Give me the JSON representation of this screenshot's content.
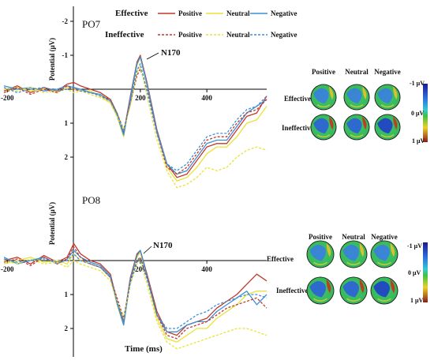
{
  "chart_data": [
    {
      "type": "line",
      "channel": "PO7",
      "ylabel": "Potential (μV)",
      "peak_label": "N170",
      "x_ticks": [
        "-200",
        "200",
        "400"
      ],
      "x_tick_values": [
        -200,
        200,
        400
      ],
      "xlim": [
        -210,
        580
      ],
      "y_ticks": [
        "-2",
        "-1",
        "1",
        "2"
      ],
      "y_tick_values": [
        -2,
        -1,
        1,
        2
      ],
      "ylim": [
        -2.6,
        2.85
      ],
      "y_inverted": true,
      "legend": {
        "effective_label": "Effective",
        "ineffective_label": "Ineffective",
        "positive_label": "Positive",
        "neutral_label": "Neutral",
        "negative_label": "Negative"
      },
      "series": [
        {
          "name": "Effective Positive",
          "condition": "Effective",
          "valence": "Positive",
          "color": "#c0392b",
          "dash": false,
          "x": [
            -210,
            -170,
            -130,
            -90,
            -50,
            -20,
            0,
            20,
            50,
            80,
            110,
            130,
            150,
            170,
            190,
            200,
            220,
            250,
            280,
            310,
            340,
            370,
            400,
            430,
            460,
            490,
            520,
            550,
            580
          ],
          "y": [
            0.05,
            -0.1,
            0.1,
            -0.05,
            0.05,
            -0.15,
            -0.2,
            -0.1,
            0.0,
            0.1,
            0.3,
            0.7,
            1.3,
            0.2,
            -0.8,
            -1.0,
            -0.2,
            1.2,
            2.2,
            2.6,
            2.5,
            2.1,
            1.7,
            1.6,
            1.6,
            1.2,
            0.8,
            0.7,
            0.2
          ]
        },
        {
          "name": "Effective Neutral",
          "condition": "Effective",
          "valence": "Neutral",
          "color": "#e8e23a",
          "dash": false,
          "x": [
            -210,
            -170,
            -130,
            -90,
            -50,
            -20,
            0,
            20,
            50,
            80,
            110,
            130,
            150,
            170,
            190,
            200,
            220,
            250,
            280,
            310,
            340,
            370,
            400,
            430,
            460,
            490,
            520,
            550,
            580
          ],
          "y": [
            0.0,
            -0.05,
            0.05,
            0.0,
            0.1,
            -0.05,
            0.0,
            0.05,
            0.05,
            0.2,
            0.4,
            0.8,
            1.4,
            0.3,
            -0.7,
            -0.95,
            -0.1,
            1.3,
            2.3,
            2.7,
            2.6,
            2.3,
            1.9,
            1.7,
            1.7,
            1.4,
            1.0,
            0.9,
            0.5
          ]
        },
        {
          "name": "Effective Negative",
          "condition": "Effective",
          "valence": "Negative",
          "color": "#3d8fd6",
          "dash": false,
          "x": [
            -210,
            -170,
            -130,
            -90,
            -50,
            -20,
            0,
            20,
            50,
            80,
            110,
            130,
            150,
            170,
            190,
            200,
            220,
            250,
            280,
            310,
            340,
            370,
            400,
            430,
            460,
            490,
            520,
            550,
            580
          ],
          "y": [
            -0.1,
            0.0,
            -0.05,
            0.05,
            0.0,
            -0.1,
            -0.05,
            0.0,
            0.1,
            0.15,
            0.35,
            0.75,
            1.35,
            0.25,
            -0.75,
            -0.95,
            -0.15,
            1.25,
            2.2,
            2.5,
            2.4,
            2.0,
            1.6,
            1.5,
            1.5,
            1.1,
            0.7,
            0.5,
            0.3
          ]
        },
        {
          "name": "Ineffective Positive",
          "condition": "Ineffective",
          "valence": "Positive",
          "color": "#c0392b",
          "dash": true,
          "x": [
            -210,
            -170,
            -130,
            -90,
            -50,
            -20,
            0,
            20,
            50,
            80,
            110,
            130,
            150,
            170,
            190,
            200,
            220,
            250,
            280,
            310,
            340,
            370,
            400,
            430,
            460,
            490,
            520,
            550,
            580
          ],
          "y": [
            0.1,
            -0.05,
            0.15,
            0.0,
            0.1,
            -0.1,
            0.0,
            0.05,
            0.1,
            0.2,
            0.3,
            0.7,
            1.2,
            0.4,
            -0.4,
            -0.6,
            0.0,
            1.3,
            2.3,
            2.5,
            2.3,
            1.9,
            1.5,
            1.4,
            1.4,
            1.0,
            0.7,
            0.6,
            0.3
          ]
        },
        {
          "name": "Ineffective Neutral",
          "condition": "Ineffective",
          "valence": "Neutral",
          "color": "#e8e23a",
          "dash": true,
          "x": [
            -210,
            -170,
            -130,
            -90,
            -50,
            -20,
            0,
            20,
            50,
            80,
            110,
            130,
            150,
            170,
            190,
            200,
            220,
            250,
            280,
            310,
            340,
            370,
            400,
            430,
            460,
            490,
            520,
            550,
            580
          ],
          "y": [
            0.0,
            0.05,
            -0.05,
            0.1,
            0.05,
            0.0,
            0.1,
            0.05,
            0.15,
            0.25,
            0.4,
            0.8,
            1.2,
            0.5,
            -0.5,
            -0.7,
            0.2,
            1.5,
            2.4,
            2.9,
            2.8,
            2.6,
            2.3,
            2.4,
            2.3,
            2.0,
            1.8,
            1.7,
            1.8
          ]
        },
        {
          "name": "Ineffective Negative",
          "condition": "Ineffective",
          "valence": "Negative",
          "color": "#3d8fd6",
          "dash": true,
          "x": [
            -210,
            -170,
            -130,
            -90,
            -50,
            -20,
            0,
            20,
            50,
            80,
            110,
            130,
            150,
            170,
            190,
            200,
            220,
            250,
            280,
            310,
            340,
            370,
            400,
            430,
            460,
            490,
            520,
            550,
            580
          ],
          "y": [
            -0.05,
            0.1,
            0.0,
            -0.05,
            0.05,
            0.0,
            -0.05,
            0.05,
            0.1,
            0.2,
            0.35,
            0.7,
            1.25,
            0.35,
            -0.55,
            -0.75,
            0.05,
            1.3,
            2.2,
            2.4,
            2.2,
            1.8,
            1.4,
            1.3,
            1.3,
            0.9,
            0.6,
            0.5,
            0.2
          ]
        }
      ],
      "topomap": {
        "column_labels": [
          "Positive",
          "Neutral",
          "Negative"
        ],
        "row_labels": [
          "Effective",
          "Ineffective"
        ],
        "scale_labels": [
          "-1 μV",
          "0 μV",
          "1 μV"
        ]
      }
    },
    {
      "type": "line",
      "channel": "PO8",
      "ylabel": "Potential (μV)",
      "peak_label": "N170",
      "xlabel": "Time (ms)",
      "x_ticks": [
        "-200",
        "200",
        "400"
      ],
      "x_tick_values": [
        -200,
        200,
        400
      ],
      "xlim": [
        -210,
        580
      ],
      "y_ticks": [
        "1",
        "2"
      ],
      "y_tick_values": [
        1,
        2
      ],
      "ylim": [
        -1.3,
        2.85
      ],
      "y_inverted": true,
      "series": [
        {
          "name": "Effective Positive",
          "condition": "Effective",
          "valence": "Positive",
          "color": "#c0392b",
          "dash": false,
          "x": [
            -210,
            -170,
            -130,
            -90,
            -50,
            -20,
            0,
            20,
            50,
            80,
            110,
            130,
            150,
            170,
            190,
            200,
            220,
            250,
            280,
            310,
            340,
            370,
            400,
            430,
            460,
            490,
            520,
            550,
            580
          ],
          "y": [
            0.0,
            -0.1,
            0.1,
            -0.15,
            0.05,
            -0.1,
            -0.5,
            -0.2,
            0.0,
            0.1,
            0.4,
            1.2,
            1.8,
            0.5,
            -0.2,
            -0.3,
            0.4,
            1.5,
            2.1,
            2.2,
            1.9,
            1.8,
            1.7,
            1.4,
            1.2,
            1.0,
            0.7,
            0.4,
            0.6
          ]
        },
        {
          "name": "Effective Neutral",
          "condition": "Effective",
          "valence": "Neutral",
          "color": "#e8e23a",
          "dash": false,
          "x": [
            -210,
            -170,
            -130,
            -90,
            -50,
            -20,
            0,
            20,
            50,
            80,
            110,
            130,
            150,
            170,
            190,
            200,
            220,
            250,
            280,
            310,
            340,
            370,
            400,
            430,
            460,
            490,
            520,
            550,
            580
          ],
          "y": [
            0.1,
            0.0,
            -0.1,
            0.05,
            0.0,
            0.1,
            -0.2,
            0.0,
            0.1,
            0.2,
            0.5,
            1.3,
            1.9,
            0.6,
            -0.1,
            -0.25,
            0.5,
            1.7,
            2.3,
            2.4,
            2.2,
            2.0,
            2.0,
            1.7,
            1.5,
            1.3,
            1.0,
            0.9,
            0.9
          ]
        },
        {
          "name": "Effective Negative",
          "condition": "Effective",
          "valence": "Negative",
          "color": "#3d8fd6",
          "dash": false,
          "x": [
            -210,
            -170,
            -130,
            -90,
            -50,
            -20,
            0,
            20,
            50,
            80,
            110,
            130,
            150,
            170,
            190,
            200,
            220,
            250,
            280,
            310,
            340,
            370,
            400,
            430,
            460,
            490,
            520,
            550,
            580
          ],
          "y": [
            -0.1,
            0.1,
            0.0,
            -0.1,
            0.1,
            -0.05,
            -0.3,
            -0.1,
            0.05,
            0.15,
            0.45,
            1.25,
            1.9,
            0.55,
            -0.15,
            -0.3,
            0.45,
            1.6,
            2.1,
            2.1,
            1.9,
            1.8,
            1.8,
            1.5,
            1.3,
            1.1,
            0.9,
            1.3,
            1.0
          ]
        },
        {
          "name": "Ineffective Positive",
          "condition": "Ineffective",
          "valence": "Positive",
          "color": "#c0392b",
          "dash": true,
          "x": [
            -210,
            -170,
            -130,
            -90,
            -50,
            -20,
            0,
            20,
            50,
            80,
            110,
            130,
            150,
            170,
            190,
            200,
            220,
            250,
            280,
            310,
            340,
            370,
            400,
            430,
            460,
            490,
            520,
            550,
            580
          ],
          "y": [
            0.05,
            -0.05,
            0.15,
            -0.1,
            0.1,
            -0.05,
            -0.4,
            -0.1,
            0.1,
            0.2,
            0.5,
            1.1,
            1.7,
            0.6,
            0.0,
            -0.1,
            0.5,
            1.6,
            2.2,
            2.3,
            2.0,
            1.9,
            1.8,
            1.6,
            1.4,
            1.3,
            1.2,
            1.1,
            1.4
          ]
        },
        {
          "name": "Ineffective Neutral",
          "condition": "Ineffective",
          "valence": "Neutral",
          "color": "#e8e23a",
          "dash": true,
          "x": [
            -210,
            -170,
            -130,
            -90,
            -50,
            -20,
            0,
            20,
            50,
            80,
            110,
            130,
            150,
            170,
            190,
            200,
            220,
            250,
            280,
            310,
            340,
            370,
            400,
            430,
            460,
            490,
            520,
            550,
            580
          ],
          "y": [
            0.0,
            0.1,
            -0.05,
            0.1,
            0.05,
            0.2,
            0.0,
            0.1,
            0.2,
            0.3,
            0.6,
            1.2,
            1.7,
            0.7,
            0.1,
            0.0,
            0.7,
            1.8,
            2.4,
            2.6,
            2.5,
            2.4,
            2.3,
            2.2,
            2.1,
            2.0,
            2.0,
            2.1,
            2.2
          ]
        },
        {
          "name": "Ineffective Negative",
          "condition": "Ineffective",
          "valence": "Negative",
          "color": "#3d8fd6",
          "dash": true,
          "x": [
            -210,
            -170,
            -130,
            -90,
            -50,
            -20,
            0,
            20,
            50,
            80,
            110,
            130,
            150,
            170,
            190,
            200,
            220,
            250,
            280,
            310,
            340,
            370,
            400,
            430,
            460,
            490,
            520,
            550,
            580
          ],
          "y": [
            -0.05,
            0.05,
            0.0,
            -0.05,
            0.05,
            0.0,
            -0.2,
            0.0,
            0.1,
            0.2,
            0.5,
            1.2,
            1.8,
            0.65,
            0.05,
            -0.05,
            0.55,
            1.6,
            2.0,
            2.0,
            1.8,
            1.6,
            1.5,
            1.3,
            1.2,
            1.1,
            1.0,
            1.0,
            1.1
          ]
        }
      ],
      "topomap": {
        "column_labels": [
          "Positive",
          "Neutral",
          "Negative"
        ],
        "row_labels": [
          "Effective",
          "Ineffective"
        ],
        "scale_labels": [
          "-1 μV",
          "0 μV",
          "1 μV"
        ]
      }
    }
  ]
}
